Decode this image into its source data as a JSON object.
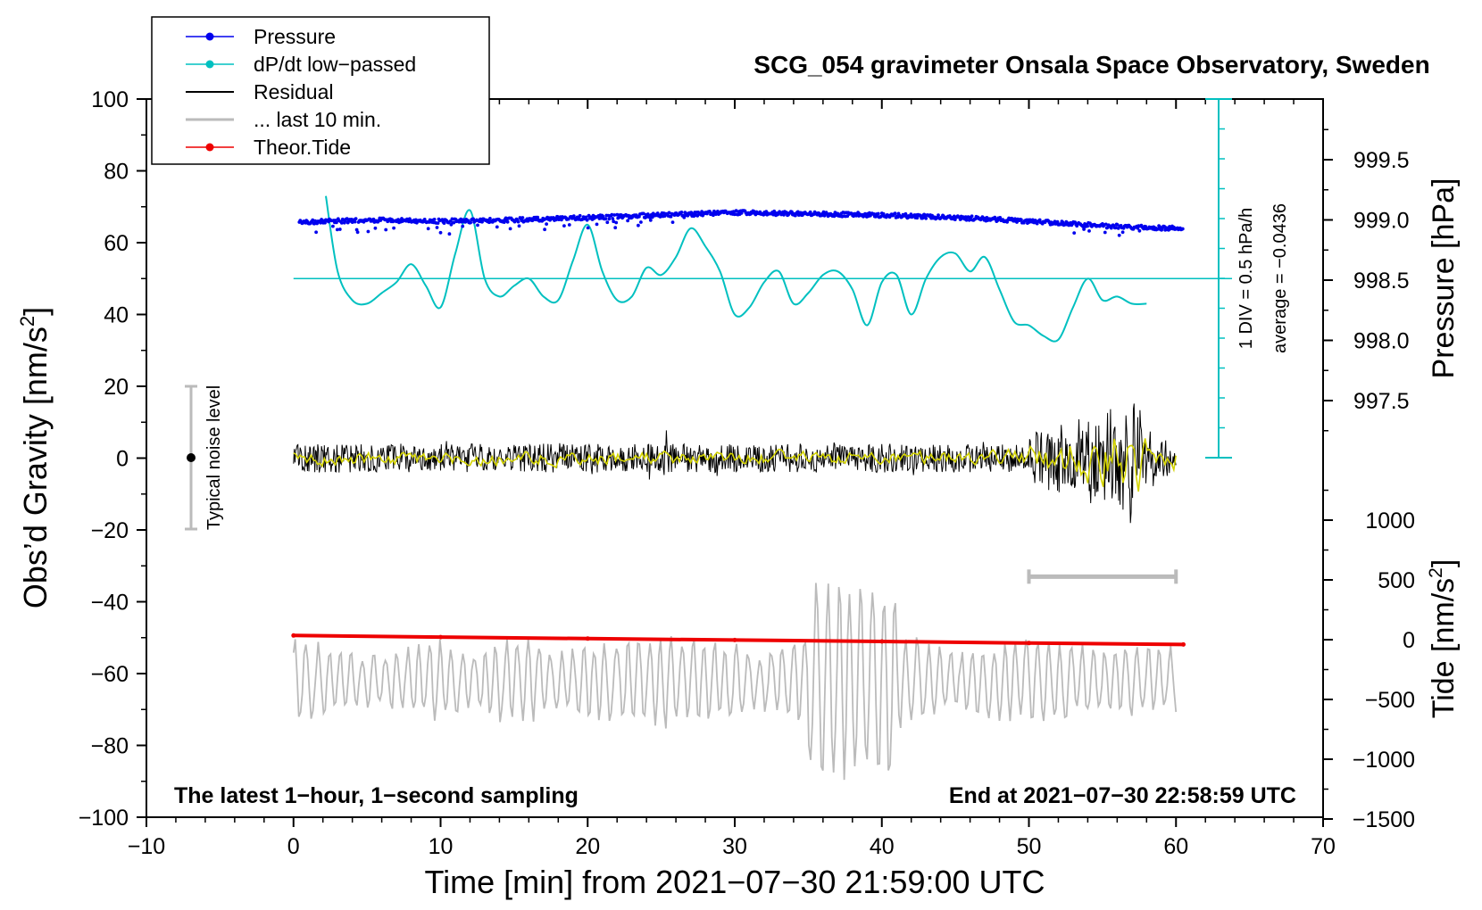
{
  "chart_data": {
    "type": "line",
    "title": "SCG_054 gravimeter Onsala Space Observatory, Sweden",
    "xlabel": "Time [min] from 2021−07−30 21:59:00 UTC",
    "ylabel_left": "Obs’d Gravity [nm/s",
    "ylabel_left_sup": "2",
    "ylabel_left_close": "]",
    "ylabel_right_pressure": "Pressure [hPa]",
    "ylabel_right_tide": "Tide [nm/s",
    "ylabel_right_tide_sup": "2",
    "ylabel_right_tide_close": "]",
    "xlim": [
      -10,
      70
    ],
    "ylim": [
      -100,
      100
    ],
    "x_ticks": [
      "−10",
      "0",
      "10",
      "20",
      "30",
      "40",
      "50",
      "60",
      "70"
    ],
    "y_ticks": [
      "100",
      "80",
      "60",
      "40",
      "20",
      "0",
      "−20",
      "−40",
      "−60",
      "−80",
      "−100"
    ],
    "pressure_axis": {
      "range": [
        997.0,
        1000.0
      ],
      "ticks": [
        "999.5",
        "999.0",
        "998.5",
        "998.0",
        "997.5"
      ],
      "tick_values": [
        999.5,
        999.0,
        998.5,
        998.0,
        997.5
      ]
    },
    "tide_axis": {
      "range": [
        -1500,
        1500
      ],
      "ticks": [
        "1000",
        "500",
        "0",
        "−500",
        "−1000",
        "−1500"
      ],
      "tick_values": [
        1000,
        500,
        0,
        -500,
        -1000,
        -1500
      ]
    },
    "legend": {
      "placement": "top-left",
      "entries": [
        {
          "label": "Pressure",
          "color": "#0000ee",
          "marker": true
        },
        {
          "label": "dP/dt low−passed",
          "color": "#00c0c0",
          "marker": true
        },
        {
          "label": "Residual",
          "color": "#000000",
          "marker": false
        },
        {
          "label": "... last 10 min.",
          "color": "#bbbbbb",
          "marker": false
        },
        {
          "label": "Theor.Tide",
          "color": "#ee0000",
          "marker": true
        }
      ]
    },
    "annotations": {
      "bottom_left": "The latest 1−hour, 1−second sampling",
      "bottom_right": "End at 2021−07−30 22:58:59 UTC",
      "noise_label": "Typical noise level",
      "noise_range": [
        -20,
        20
      ],
      "div_label": "1 DIV = 0.5 hPa/h",
      "average_label": "average = −0.0436",
      "dpdt_zero_level": 50,
      "scale_bar_x": [
        50,
        60
      ],
      "scale_bar_y": -33
    },
    "series": [
      {
        "name": "Pressure",
        "color": "#0000ee",
        "axis": "pressure",
        "x": [
          0.5,
          5,
          10,
          15,
          20,
          25,
          30,
          35,
          40,
          45,
          50,
          55,
          60
        ],
        "values": [
          998.98,
          999.0,
          998.99,
          999.0,
          999.02,
          999.04,
          999.06,
          999.05,
          999.04,
          999.02,
          998.99,
          998.95,
          998.93
        ]
      },
      {
        "name": "dP/dt low-passed",
        "color": "#00c0c0",
        "axis": "gravity",
        "x": [
          2.2,
          3,
          4,
          5,
          6,
          7,
          8,
          9,
          10,
          11,
          12,
          13,
          14,
          15,
          16,
          17,
          18,
          19,
          20,
          21,
          22,
          23,
          24,
          25,
          26,
          27,
          28,
          29,
          30,
          31,
          32,
          33,
          34,
          35,
          36,
          37,
          38,
          39,
          40,
          41,
          42,
          43,
          44,
          45,
          46,
          47,
          48,
          49,
          50,
          51,
          52,
          53,
          54,
          55,
          56,
          57,
          58
        ],
        "values": [
          73,
          52,
          44,
          43,
          46,
          49,
          54,
          48,
          42,
          57,
          69,
          50,
          45,
          48,
          50,
          45,
          44,
          55,
          65,
          52,
          44,
          45,
          53,
          51,
          56,
          64,
          59,
          52,
          40,
          42,
          49,
          52,
          43,
          46,
          51,
          52,
          47,
          37,
          49,
          51,
          40,
          50,
          56,
          57,
          52,
          56,
          47,
          38,
          37,
          34,
          33,
          42,
          50,
          44,
          45,
          43,
          43
        ]
      },
      {
        "name": "Residual",
        "color": "#000000",
        "axis": "gravity",
        "x": [
          0,
          10,
          20,
          23.5,
          30,
          40,
          45,
          50,
          52,
          54,
          56,
          57,
          58,
          60
        ],
        "values": [
          0,
          5,
          4,
          -10,
          4,
          5,
          5,
          8,
          -12,
          12,
          18,
          -19,
          10,
          3
        ]
      },
      {
        "name": "... last 10 min.",
        "color": "#bbbbbb",
        "axis": "gravity",
        "x": [
          0,
          5,
          10,
          15,
          20,
          25,
          30,
          35,
          36,
          38,
          39,
          40,
          45,
          50,
          55,
          60
        ],
        "values": [
          -55,
          -63,
          -57,
          -70,
          -58,
          -53,
          -58,
          -70,
          -46,
          -81,
          -42,
          -75,
          -62,
          -54,
          -60,
          -60
        ]
      },
      {
        "name": "Theor.Tide",
        "color": "#ee0000",
        "axis": "tide",
        "x": [
          0,
          10,
          20,
          30,
          40,
          50,
          60.5
        ],
        "values": [
          35,
          22,
          9,
          -3,
          -15,
          -28,
          -40
        ]
      }
    ]
  }
}
